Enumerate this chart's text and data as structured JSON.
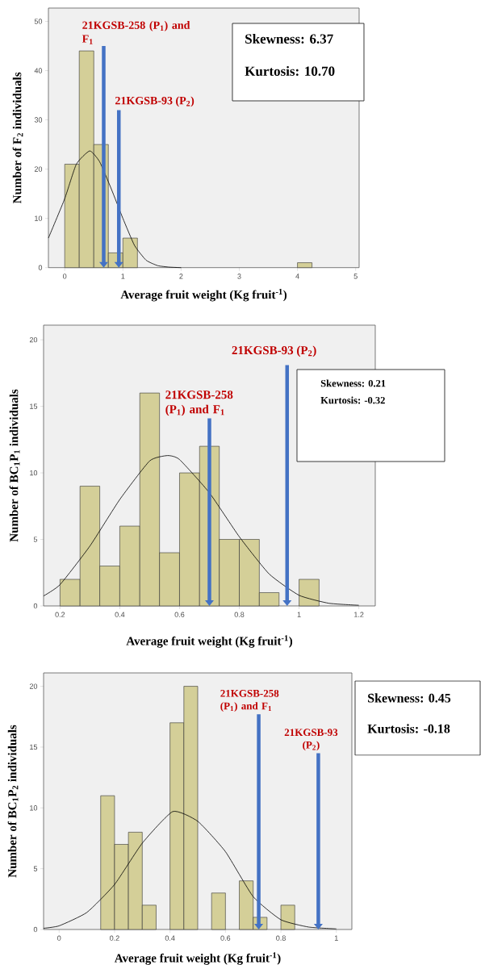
{
  "chart_data": [
    {
      "type": "histogram",
      "xlabel": "Average fruit weight (Kg fruit$^{-1}$)",
      "ylabel": "Number of F$_{2}$ individuals",
      "bins": [
        0,
        0.25,
        0.5,
        0.75,
        1,
        1.25,
        1.5,
        1.75,
        2,
        2.25,
        2.5,
        2.75,
        3,
        3.25,
        3.5,
        3.75,
        4,
        4.25
      ],
      "values": [
        21,
        44,
        25,
        3,
        6,
        0,
        0,
        0,
        0,
        0,
        0,
        0,
        0,
        0,
        0,
        0,
        1
      ],
      "color": "#d4cf98",
      "xlim": [
        -0.28,
        5.06
      ],
      "ylim": [
        0,
        52.7
      ],
      "xticks": [
        0,
        1,
        2,
        3,
        4,
        5
      ],
      "yticks": [
        0,
        10,
        20,
        30,
        40,
        50
      ],
      "series": [
        {
          "type": "line",
          "color": "#000000",
          "x": [
            -0.28,
            0,
            0.2,
            0.43,
            0.6,
            0.8,
            1.0,
            1.2,
            1.4,
            1.6,
            1.8,
            2.0
          ],
          "values": [
            6,
            14,
            21,
            23.7,
            21.5,
            16,
            10,
            4.5,
            1.5,
            0.4,
            0.1,
            0
          ]
        }
      ],
      "ref_lines": [
        {
          "axis": "x",
          "value": 0.67,
          "label": "21KGSB-258 (P$_{1}$) and F$_{1}$",
          "color": "#4472c4"
        },
        {
          "axis": "x",
          "value": 0.93,
          "label": "21KGSB-93 (P$_{2}$)",
          "color": "#4472c4"
        }
      ],
      "annotations": [
        "Skewness: 6.37",
        "Kurtosis: 10.70"
      ]
    },
    {
      "type": "histogram",
      "xlabel": "Average fruit weight (Kg fruit$^{-1}$)",
      "ylabel": "Number of BC$_{1}$P$_{1}$ individuals",
      "bins": [
        0.2,
        0.267,
        0.333,
        0.4,
        0.467,
        0.533,
        0.6,
        0.667,
        0.733,
        0.8,
        0.867,
        0.933,
        1.0,
        1.067
      ],
      "values": [
        2,
        9,
        3,
        6,
        16,
        4,
        10,
        12,
        5,
        5,
        1,
        0,
        2
      ],
      "color": "#d4cf98",
      "xlim": [
        0.145,
        1.255
      ],
      "ylim": [
        0,
        21.1
      ],
      "xticks": [
        0.2,
        0.4,
        0.6,
        0.8,
        1,
        1.2
      ],
      "yticks": [
        0,
        5,
        10,
        15,
        20
      ],
      "series": [
        {
          "type": "line",
          "color": "#000000",
          "x": [
            0.145,
            0.2,
            0.3,
            0.4,
            0.5,
            0.56,
            0.6,
            0.7,
            0.8,
            0.9,
            1.0,
            1.1,
            1.2
          ],
          "values": [
            0.75,
            1.6,
            4.5,
            8.0,
            10.9,
            11.3,
            11.0,
            8.5,
            5.2,
            2.4,
            0.8,
            0.2,
            0.05
          ]
        }
      ],
      "ref_lines": [
        {
          "axis": "x",
          "value": 0.7,
          "label": "21KGSB-258 (P$_{1}$) and F$_{1}$",
          "color": "#4472c4"
        },
        {
          "axis": "x",
          "value": 0.96,
          "label": "21KGSB-93 (P$_{2}$)",
          "color": "#4472c4"
        }
      ],
      "annotations": [
        "Skewness: 0.21",
        "Kurtosis: -0.32"
      ]
    },
    {
      "type": "histogram",
      "xlabel": "Average fruit weight (Kg fruit$^{-1}$)",
      "ylabel": "Number of BC$_{1}$P$_{2}$ individuals",
      "bins": [
        0.15,
        0.2,
        0.25,
        0.3,
        0.35,
        0.4,
        0.45,
        0.5,
        0.55,
        0.6,
        0.65,
        0.7,
        0.75,
        0.8,
        0.85
      ],
      "values": [
        11,
        7,
        8,
        2,
        0,
        17,
        20,
        0,
        3,
        0,
        4,
        1,
        0,
        2
      ],
      "color": "#d4cf98",
      "xlim": [
        -0.056,
        1.056
      ],
      "ylim": [
        0,
        21.1
      ],
      "xticks": [
        0,
        0.2,
        0.4,
        0.6,
        0.8,
        1
      ],
      "yticks": [
        0,
        5,
        10,
        15,
        20
      ],
      "series": [
        {
          "type": "line",
          "color": "#000000",
          "x": [
            -0.056,
            0,
            0.1,
            0.2,
            0.3,
            0.41,
            0.5,
            0.6,
            0.7,
            0.8,
            0.9,
            1.0
          ],
          "values": [
            0.1,
            0.3,
            1.4,
            3.7,
            7.1,
            9.7,
            8.9,
            6.4,
            2.7,
            0.8,
            0.2,
            0.05
          ]
        }
      ],
      "ref_lines": [
        {
          "axis": "x",
          "value": 0.72,
          "label": "21KGSB-258 (P$_{1}$) and F$_{1}$",
          "color": "#4472c4"
        },
        {
          "axis": "x",
          "value": 0.935,
          "label": "21KGSB-93 (P$_{2}$)",
          "color": "#4472c4"
        }
      ],
      "annotations": [
        "Skewness: 0.45",
        "Kurtosis: -0.18"
      ]
    }
  ]
}
